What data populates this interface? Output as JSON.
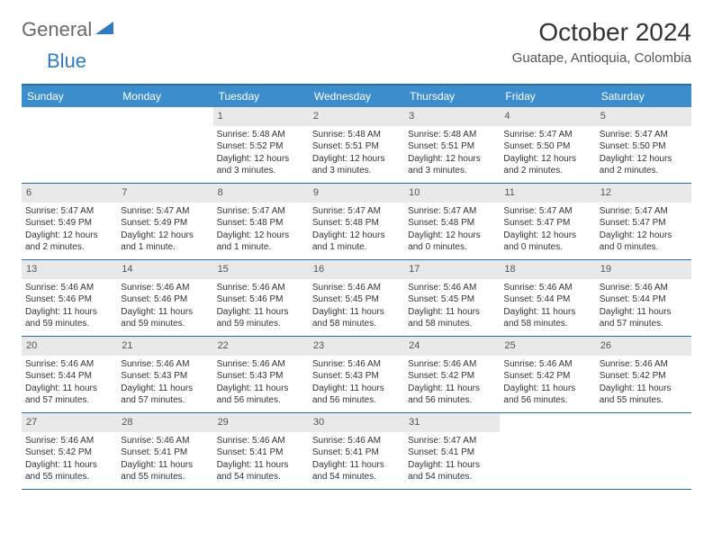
{
  "logo": {
    "text1": "General",
    "text2": "Blue",
    "icon_color": "#2f7bbf"
  },
  "title": "October 2024",
  "location": "Guatape, Antioquia, Colombia",
  "colors": {
    "header_blue": "#3c8dcc",
    "border_blue": "#2c6ca8",
    "day_bar": "#e9e9e9",
    "logo_gray": "#6a6a6a"
  },
  "days_of_week": [
    "Sunday",
    "Monday",
    "Tuesday",
    "Wednesday",
    "Thursday",
    "Friday",
    "Saturday"
  ],
  "weeks": [
    [
      null,
      null,
      {
        "n": "1",
        "sr": "5:48 AM",
        "ss": "5:52 PM",
        "dl": "12 hours and 3 minutes."
      },
      {
        "n": "2",
        "sr": "5:48 AM",
        "ss": "5:51 PM",
        "dl": "12 hours and 3 minutes."
      },
      {
        "n": "3",
        "sr": "5:48 AM",
        "ss": "5:51 PM",
        "dl": "12 hours and 3 minutes."
      },
      {
        "n": "4",
        "sr": "5:47 AM",
        "ss": "5:50 PM",
        "dl": "12 hours and 2 minutes."
      },
      {
        "n": "5",
        "sr": "5:47 AM",
        "ss": "5:50 PM",
        "dl": "12 hours and 2 minutes."
      }
    ],
    [
      {
        "n": "6",
        "sr": "5:47 AM",
        "ss": "5:49 PM",
        "dl": "12 hours and 2 minutes."
      },
      {
        "n": "7",
        "sr": "5:47 AM",
        "ss": "5:49 PM",
        "dl": "12 hours and 1 minute."
      },
      {
        "n": "8",
        "sr": "5:47 AM",
        "ss": "5:48 PM",
        "dl": "12 hours and 1 minute."
      },
      {
        "n": "9",
        "sr": "5:47 AM",
        "ss": "5:48 PM",
        "dl": "12 hours and 1 minute."
      },
      {
        "n": "10",
        "sr": "5:47 AM",
        "ss": "5:48 PM",
        "dl": "12 hours and 0 minutes."
      },
      {
        "n": "11",
        "sr": "5:47 AM",
        "ss": "5:47 PM",
        "dl": "12 hours and 0 minutes."
      },
      {
        "n": "12",
        "sr": "5:47 AM",
        "ss": "5:47 PM",
        "dl": "12 hours and 0 minutes."
      }
    ],
    [
      {
        "n": "13",
        "sr": "5:46 AM",
        "ss": "5:46 PM",
        "dl": "11 hours and 59 minutes."
      },
      {
        "n": "14",
        "sr": "5:46 AM",
        "ss": "5:46 PM",
        "dl": "11 hours and 59 minutes."
      },
      {
        "n": "15",
        "sr": "5:46 AM",
        "ss": "5:46 PM",
        "dl": "11 hours and 59 minutes."
      },
      {
        "n": "16",
        "sr": "5:46 AM",
        "ss": "5:45 PM",
        "dl": "11 hours and 58 minutes."
      },
      {
        "n": "17",
        "sr": "5:46 AM",
        "ss": "5:45 PM",
        "dl": "11 hours and 58 minutes."
      },
      {
        "n": "18",
        "sr": "5:46 AM",
        "ss": "5:44 PM",
        "dl": "11 hours and 58 minutes."
      },
      {
        "n": "19",
        "sr": "5:46 AM",
        "ss": "5:44 PM",
        "dl": "11 hours and 57 minutes."
      }
    ],
    [
      {
        "n": "20",
        "sr": "5:46 AM",
        "ss": "5:44 PM",
        "dl": "11 hours and 57 minutes."
      },
      {
        "n": "21",
        "sr": "5:46 AM",
        "ss": "5:43 PM",
        "dl": "11 hours and 57 minutes."
      },
      {
        "n": "22",
        "sr": "5:46 AM",
        "ss": "5:43 PM",
        "dl": "11 hours and 56 minutes."
      },
      {
        "n": "23",
        "sr": "5:46 AM",
        "ss": "5:43 PM",
        "dl": "11 hours and 56 minutes."
      },
      {
        "n": "24",
        "sr": "5:46 AM",
        "ss": "5:42 PM",
        "dl": "11 hours and 56 minutes."
      },
      {
        "n": "25",
        "sr": "5:46 AM",
        "ss": "5:42 PM",
        "dl": "11 hours and 56 minutes."
      },
      {
        "n": "26",
        "sr": "5:46 AM",
        "ss": "5:42 PM",
        "dl": "11 hours and 55 minutes."
      }
    ],
    [
      {
        "n": "27",
        "sr": "5:46 AM",
        "ss": "5:42 PM",
        "dl": "11 hours and 55 minutes."
      },
      {
        "n": "28",
        "sr": "5:46 AM",
        "ss": "5:41 PM",
        "dl": "11 hours and 55 minutes."
      },
      {
        "n": "29",
        "sr": "5:46 AM",
        "ss": "5:41 PM",
        "dl": "11 hours and 54 minutes."
      },
      {
        "n": "30",
        "sr": "5:46 AM",
        "ss": "5:41 PM",
        "dl": "11 hours and 54 minutes."
      },
      {
        "n": "31",
        "sr": "5:47 AM",
        "ss": "5:41 PM",
        "dl": "11 hours and 54 minutes."
      },
      null,
      null
    ]
  ],
  "labels": {
    "sunrise": "Sunrise:",
    "sunset": "Sunset:",
    "daylight": "Daylight:"
  }
}
